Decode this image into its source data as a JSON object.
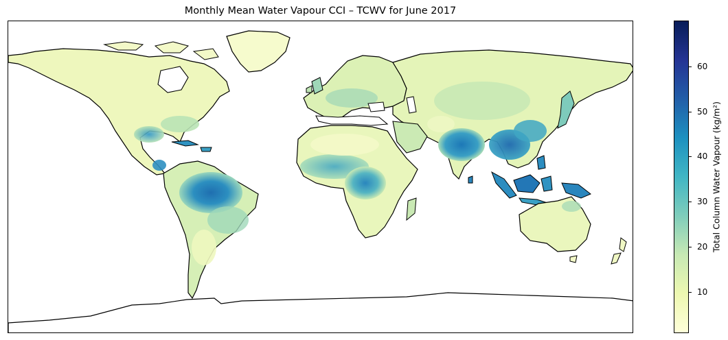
{
  "title": "Monthly Mean Water Vapour CCI – TCWV for June 2017",
  "colorbar": {
    "label": "Total Column Water Vapour (kg/m²)",
    "min": 1,
    "max": 70,
    "ticks": [
      10,
      20,
      30,
      40,
      50,
      60
    ],
    "colormap": "YlGnBu",
    "colors": [
      "#ffffd9",
      "#edf8b1",
      "#c7e9b4",
      "#7fcdbb",
      "#41b6c4",
      "#1d91c0",
      "#225ea8",
      "#253494",
      "#081d58"
    ]
  },
  "map": {
    "projection": "PlateCarree",
    "coastlines": true,
    "ocean_color": "#ffffff"
  }
}
